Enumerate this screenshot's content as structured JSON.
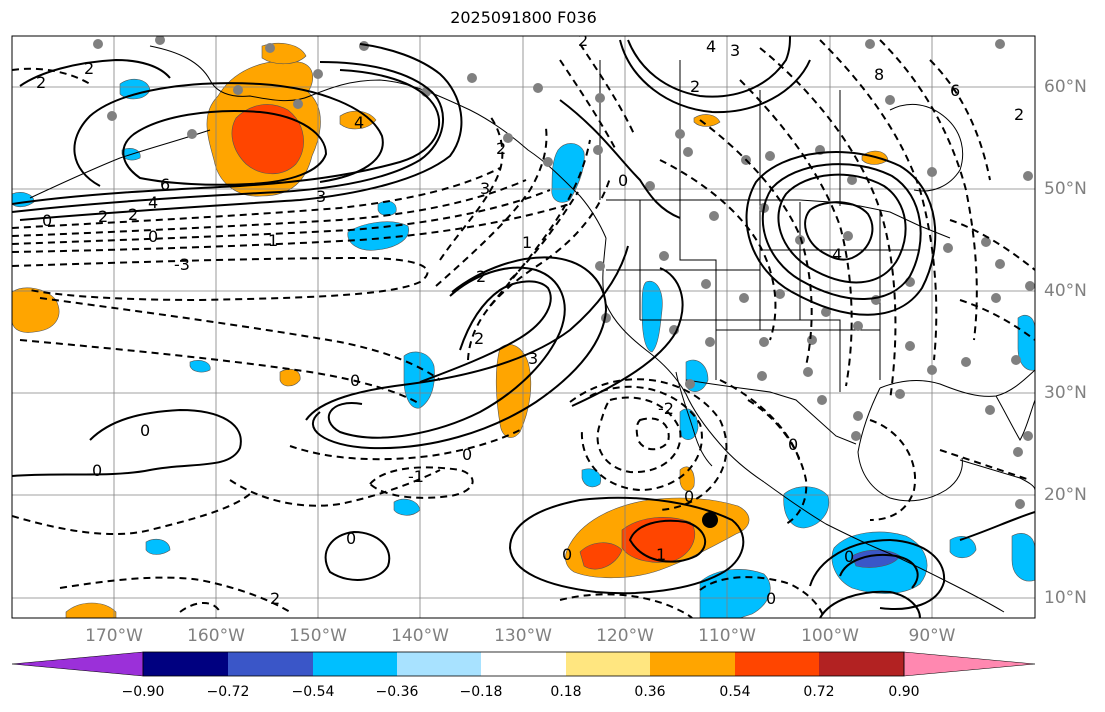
{
  "title": "2025091800 F036",
  "map": {
    "lon_labels": [
      "170°W",
      "160°W",
      "150°W",
      "140°W",
      "130°W",
      "120°W",
      "110°W",
      "100°W",
      "90°W"
    ],
    "lat_labels": [
      "60°N",
      "50°N",
      "40°N",
      "30°N",
      "20°N",
      "10°N"
    ],
    "contour_labels": [
      "2",
      "2",
      "4",
      "6",
      "4",
      "3",
      "2",
      "2",
      "0",
      "1",
      "0",
      "-3",
      "3",
      "2",
      "3",
      "2",
      "2",
      "0",
      "1",
      "0",
      "-1",
      "0",
      "0",
      "0",
      "1",
      "0",
      "-2",
      "0",
      "2",
      "4",
      "3",
      "2",
      "4",
      "8",
      "6",
      "2",
      "0",
      "0",
      "0",
      "2",
      "0"
    ],
    "marker": "storm-center",
    "colors": {
      "contour": "#000000",
      "grid": "#808080",
      "station": "#808080",
      "land": "#000000"
    }
  },
  "colorbar": {
    "tick_labels": [
      "−0.90",
      "−0.72",
      "−0.54",
      "−0.36",
      "−0.18",
      "0.18",
      "0.36",
      "0.54",
      "0.72",
      "0.90"
    ],
    "bins": [
      "#9b30d9",
      "#000080",
      "#3a56c8",
      "#00bfff",
      "#a8e2ff",
      "#ffffff",
      "#ffe680",
      "#ffa500",
      "#ff4500",
      "#b22222",
      "#ff88b0"
    ]
  }
}
